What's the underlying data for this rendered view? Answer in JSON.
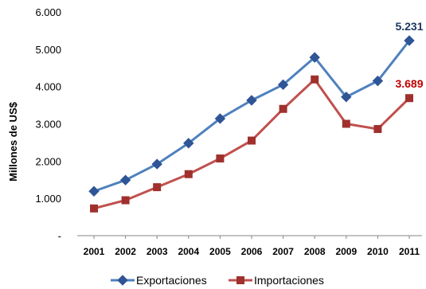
{
  "chart_data": {
    "type": "line",
    "title": "",
    "xlabel": "",
    "ylabel": "Millones de US$",
    "x": [
      "2001",
      "2002",
      "2003",
      "2004",
      "2005",
      "2006",
      "2007",
      "2008",
      "2009",
      "2010",
      "2011"
    ],
    "y_ticks": [
      "-",
      "1.000",
      "2.000",
      "3.000",
      "4.000",
      "5.000",
      "6.000"
    ],
    "ylim": [
      0,
      6000
    ],
    "grid": false,
    "legend_position": "bottom",
    "series": [
      {
        "name": "Exportaciones",
        "color": "#4F81BD",
        "marker_color": "#2F5597",
        "marker": "diamond",
        "values": [
          1190,
          1490,
          1920,
          2480,
          3140,
          3630,
          4050,
          4780,
          3720,
          4150,
          5231
        ]
      },
      {
        "name": "Importaciones",
        "color": "#C0504D",
        "marker_color": "#A0302D",
        "marker": "square",
        "values": [
          730,
          950,
          1300,
          1650,
          2070,
          2550,
          3400,
          4190,
          3000,
          2860,
          3689
        ]
      }
    ],
    "annotations": [
      {
        "series": 0,
        "index": 10,
        "text": "5.231",
        "color": "#1F3864"
      },
      {
        "series": 1,
        "index": 10,
        "text": "3.689",
        "color": "#C00000"
      }
    ]
  }
}
